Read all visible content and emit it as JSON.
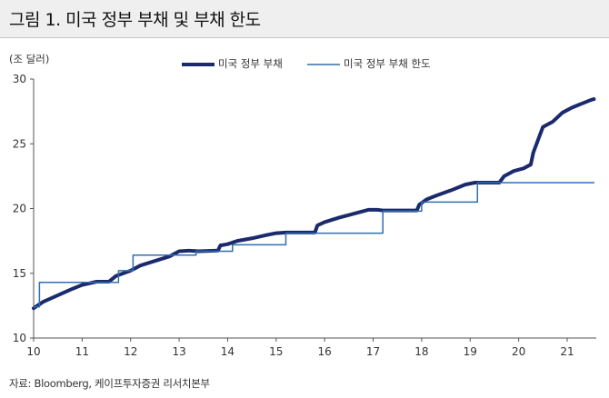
{
  "header": {
    "title": "그림 1. 미국 정부 부채 및 부채 한도"
  },
  "footer": {
    "source": "자료: Bloomberg, 케이프투자증권 리서치본부"
  },
  "chart_data": {
    "type": "line",
    "ylabel": "(조 달러)",
    "xlim": [
      10,
      21.6
    ],
    "ylim": [
      10,
      30
    ],
    "x_ticks": [
      "10",
      "11",
      "12",
      "13",
      "14",
      "15",
      "16",
      "17",
      "18",
      "19",
      "20",
      "21"
    ],
    "y_ticks": [
      "10",
      "15",
      "20",
      "25",
      "30"
    ],
    "legend_position": "top-center",
    "grid": false,
    "series": [
      {
        "name": "미국 정부 부채",
        "style": "line",
        "color": "#1a2a6c",
        "points": [
          [
            10.0,
            12.3
          ],
          [
            10.2,
            12.8
          ],
          [
            10.5,
            13.3
          ],
          [
            10.8,
            13.8
          ],
          [
            11.0,
            14.1
          ],
          [
            11.3,
            14.35
          ],
          [
            11.55,
            14.35
          ],
          [
            11.7,
            14.8
          ],
          [
            12.0,
            15.2
          ],
          [
            12.2,
            15.6
          ],
          [
            12.5,
            15.95
          ],
          [
            12.8,
            16.3
          ],
          [
            13.0,
            16.7
          ],
          [
            13.2,
            16.75
          ],
          [
            13.4,
            16.7
          ],
          [
            13.8,
            16.75
          ],
          [
            13.85,
            17.15
          ],
          [
            14.0,
            17.25
          ],
          [
            14.2,
            17.5
          ],
          [
            14.5,
            17.7
          ],
          [
            14.8,
            17.95
          ],
          [
            15.0,
            18.1
          ],
          [
            15.2,
            18.15
          ],
          [
            15.8,
            18.15
          ],
          [
            15.85,
            18.7
          ],
          [
            16.0,
            18.95
          ],
          [
            16.3,
            19.3
          ],
          [
            16.6,
            19.6
          ],
          [
            16.9,
            19.9
          ],
          [
            17.1,
            19.9
          ],
          [
            17.2,
            19.85
          ],
          [
            17.9,
            19.85
          ],
          [
            17.95,
            20.3
          ],
          [
            18.1,
            20.7
          ],
          [
            18.3,
            21.0
          ],
          [
            18.6,
            21.4
          ],
          [
            18.9,
            21.85
          ],
          [
            19.1,
            22.0
          ],
          [
            19.2,
            22.0
          ],
          [
            19.6,
            22.0
          ],
          [
            19.7,
            22.5
          ],
          [
            19.9,
            22.9
          ],
          [
            20.1,
            23.1
          ],
          [
            20.25,
            23.4
          ],
          [
            20.3,
            24.3
          ],
          [
            20.4,
            25.3
          ],
          [
            20.5,
            26.3
          ],
          [
            20.7,
            26.7
          ],
          [
            20.9,
            27.4
          ],
          [
            21.1,
            27.8
          ],
          [
            21.3,
            28.1
          ],
          [
            21.5,
            28.4
          ],
          [
            21.55,
            28.45
          ]
        ]
      },
      {
        "name": "미국 정부 부채 한도",
        "style": "step",
        "color": "#2f6fae",
        "points": [
          [
            10.0,
            12.4
          ],
          [
            10.12,
            12.4
          ],
          [
            10.12,
            14.3
          ],
          [
            11.6,
            14.3
          ],
          [
            11.75,
            14.3
          ],
          [
            11.75,
            15.2
          ],
          [
            12.05,
            15.2
          ],
          [
            12.05,
            16.4
          ],
          [
            13.35,
            16.4
          ],
          [
            13.35,
            16.7
          ],
          [
            14.1,
            16.7
          ],
          [
            14.1,
            17.2
          ],
          [
            15.2,
            17.2
          ],
          [
            15.2,
            18.1
          ],
          [
            17.2,
            18.1
          ],
          [
            17.2,
            19.8
          ],
          [
            18.0,
            19.8
          ],
          [
            18.0,
            20.5
          ],
          [
            19.15,
            20.5
          ],
          [
            19.15,
            22.0
          ],
          [
            21.55,
            22.0
          ]
        ]
      }
    ]
  }
}
